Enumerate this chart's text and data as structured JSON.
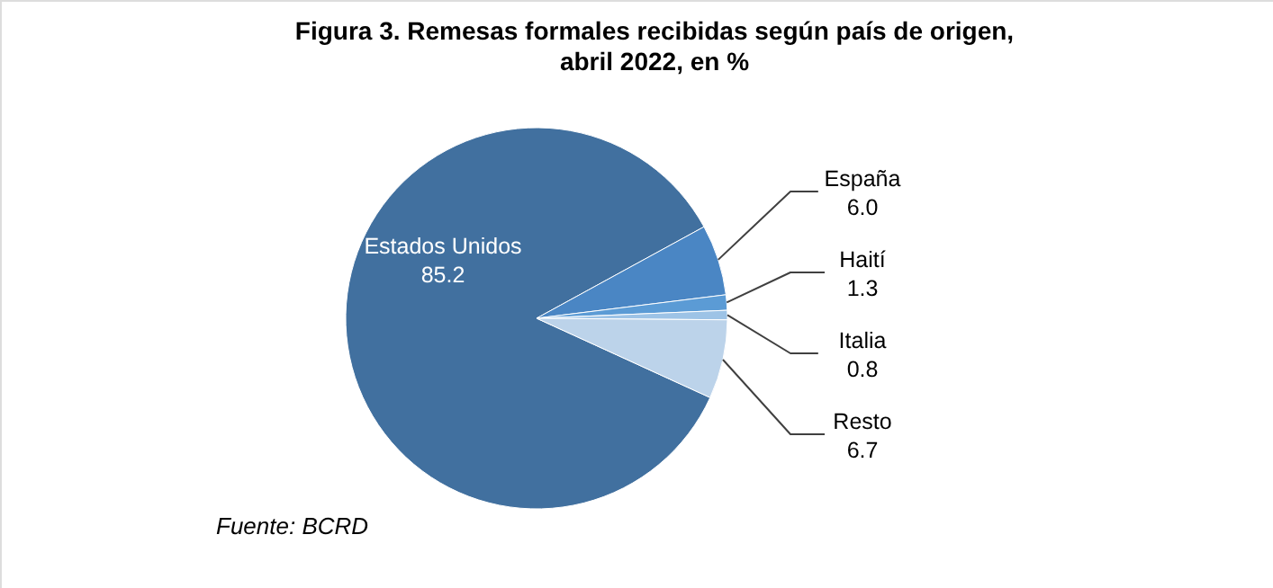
{
  "chart_data": {
    "type": "pie",
    "title": "Figura 3. Remesas formales recibidas según país de origen, abril 2022, en %",
    "categories": [
      "Estados Unidos",
      "España",
      "Haití",
      "Italia",
      "Resto"
    ],
    "values": [
      85.2,
      6.0,
      1.3,
      0.8,
      6.7
    ],
    "colors": [
      "#41709f",
      "#4a86c4",
      "#5b9bd5",
      "#9dc3e6",
      "#bcd3ea"
    ],
    "value_labels": [
      "85.2",
      "6.0",
      "1.3",
      "0.8",
      "6.7"
    ],
    "annotations": [
      "Fuente: BCRD"
    ]
  }
}
